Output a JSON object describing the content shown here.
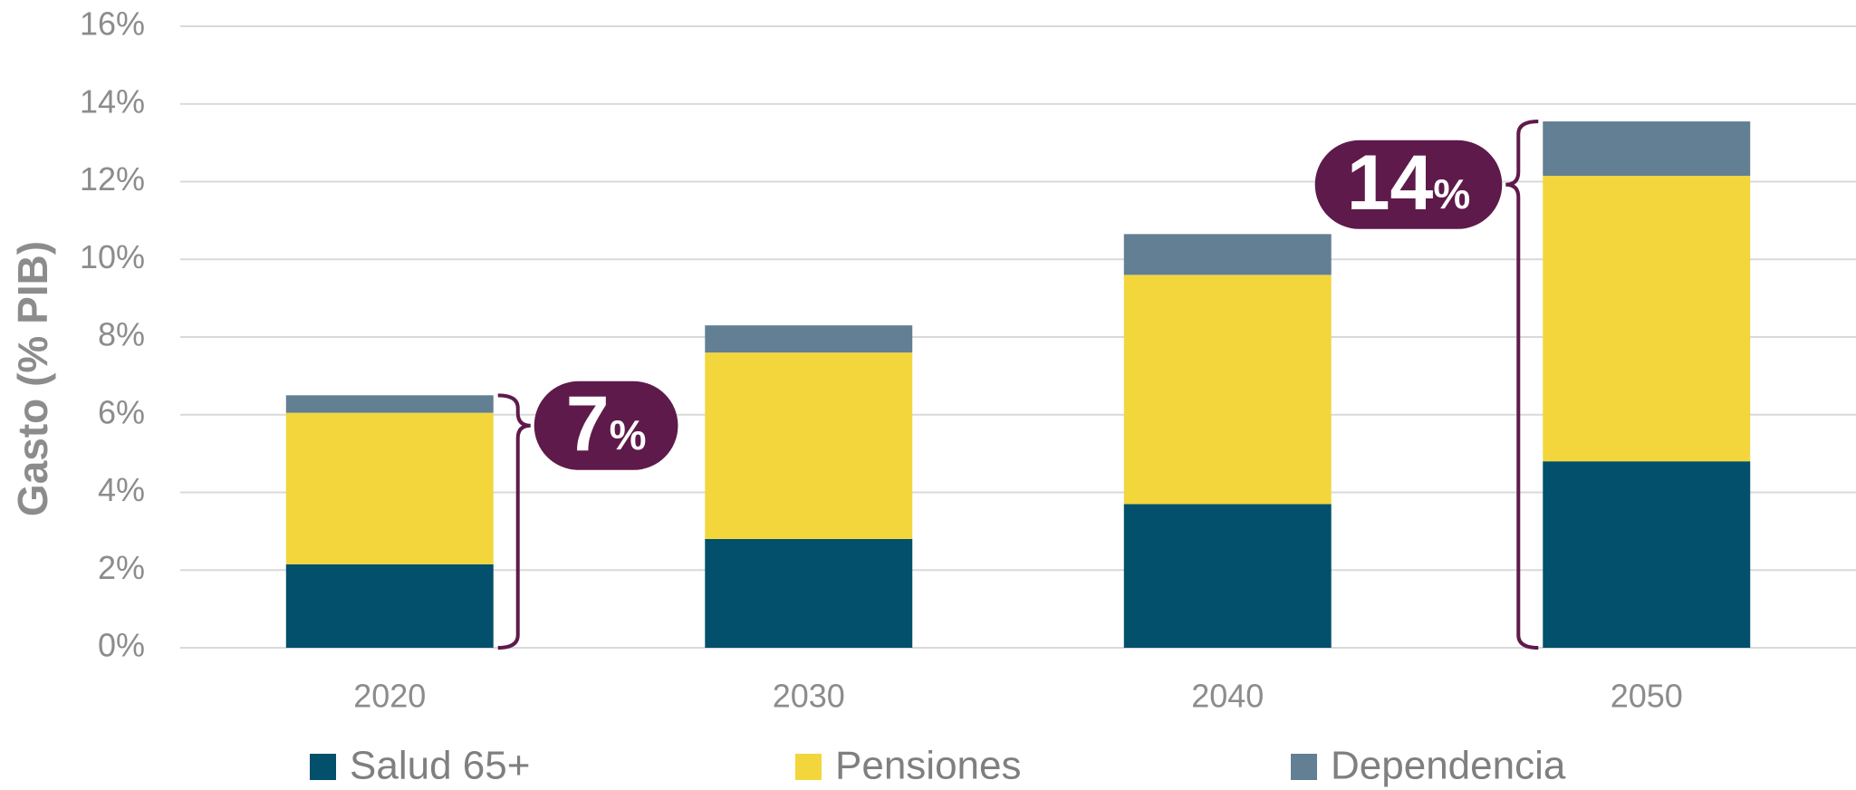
{
  "chart_data": {
    "type": "stacked-bar",
    "y_axis_label": "Gasto (% PIB)",
    "categories": [
      "2020",
      "2030",
      "2040",
      "2050"
    ],
    "series": [
      {
        "name": "Salud 65+",
        "color": "#02506b",
        "values": [
          2.15,
          2.8,
          3.7,
          4.8
        ]
      },
      {
        "name": "Pensiones",
        "color": "#f2d63c",
        "values": [
          3.9,
          4.8,
          5.9,
          7.35
        ]
      },
      {
        "name": "Dependencia",
        "color": "#637f93",
        "values": [
          0.45,
          0.7,
          1.05,
          1.4
        ]
      }
    ],
    "ylim": [
      0,
      16
    ],
    "yticks": [
      {
        "value": 0,
        "label": "0%"
      },
      {
        "value": 2,
        "label": "2%"
      },
      {
        "value": 4,
        "label": "4%"
      },
      {
        "value": 6,
        "label": "6%"
      },
      {
        "value": 8,
        "label": "8%"
      },
      {
        "value": 10,
        "label": "10%"
      },
      {
        "value": 12,
        "label": "12%"
      },
      {
        "value": 14,
        "label": "14%"
      },
      {
        "value": 16,
        "label": "16%"
      }
    ],
    "grid": true,
    "annotations": [
      {
        "category": "2020",
        "number": "7",
        "unit": "%",
        "color": "#5e1a4a"
      },
      {
        "category": "2050",
        "number": "14",
        "unit": "%",
        "color": "#5e1a4a"
      }
    ]
  }
}
